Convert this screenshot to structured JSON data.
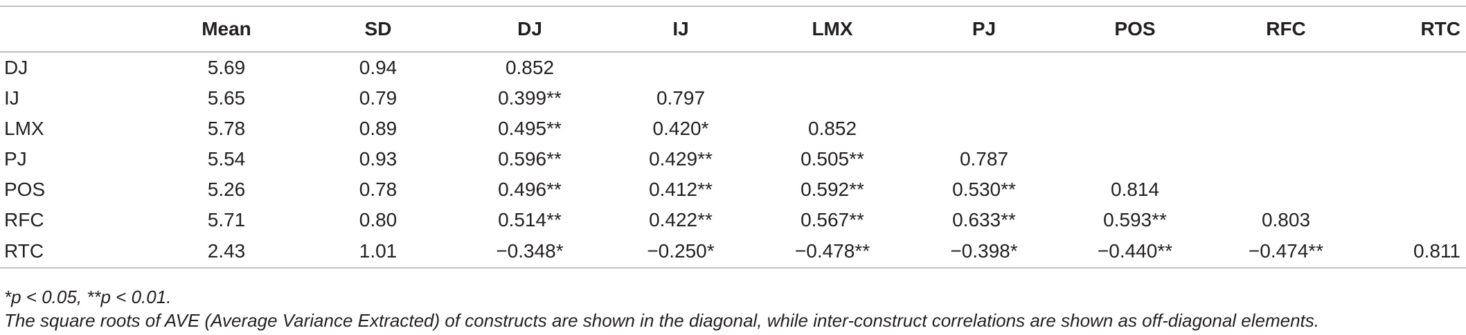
{
  "table": {
    "headers": [
      "",
      "Mean",
      "SD",
      "DJ",
      "IJ",
      "LMX",
      "PJ",
      "POS",
      "RFC",
      "RTC"
    ],
    "rows": [
      [
        "DJ",
        "5.69",
        "0.94",
        "0.852",
        "",
        "",
        "",
        "",
        "",
        ""
      ],
      [
        "IJ",
        "5.65",
        "0.79",
        "0.399**",
        "0.797",
        "",
        "",
        "",
        "",
        ""
      ],
      [
        "LMX",
        "5.78",
        "0.89",
        "0.495**",
        "0.420*",
        "0.852",
        "",
        "",
        "",
        ""
      ],
      [
        "PJ",
        "5.54",
        "0.93",
        "0.596**",
        "0.429**",
        "0.505**",
        "0.787",
        "",
        "",
        ""
      ],
      [
        "POS",
        "5.26",
        "0.78",
        "0.496**",
        "0.412**",
        "0.592**",
        "0.530**",
        "0.814",
        "",
        ""
      ],
      [
        "RFC",
        "5.71",
        "0.80",
        "0.514**",
        "0.422**",
        "0.567**",
        "0.633**",
        "0.593**",
        "0.803",
        ""
      ],
      [
        "RTC",
        "2.43",
        "1.01",
        "−0.348*",
        "−0.250*",
        "−0.478**",
        "−0.398*",
        "−0.440**",
        "−0.474**",
        "0.811"
      ]
    ]
  },
  "notes": {
    "significance": "*p < 0.05, **p <  0.01.",
    "description": "The square roots of AVE (Average Variance Extracted) of constructs are shown in the diagonal, while inter-construct correlations are shown as off-diagonal elements."
  }
}
